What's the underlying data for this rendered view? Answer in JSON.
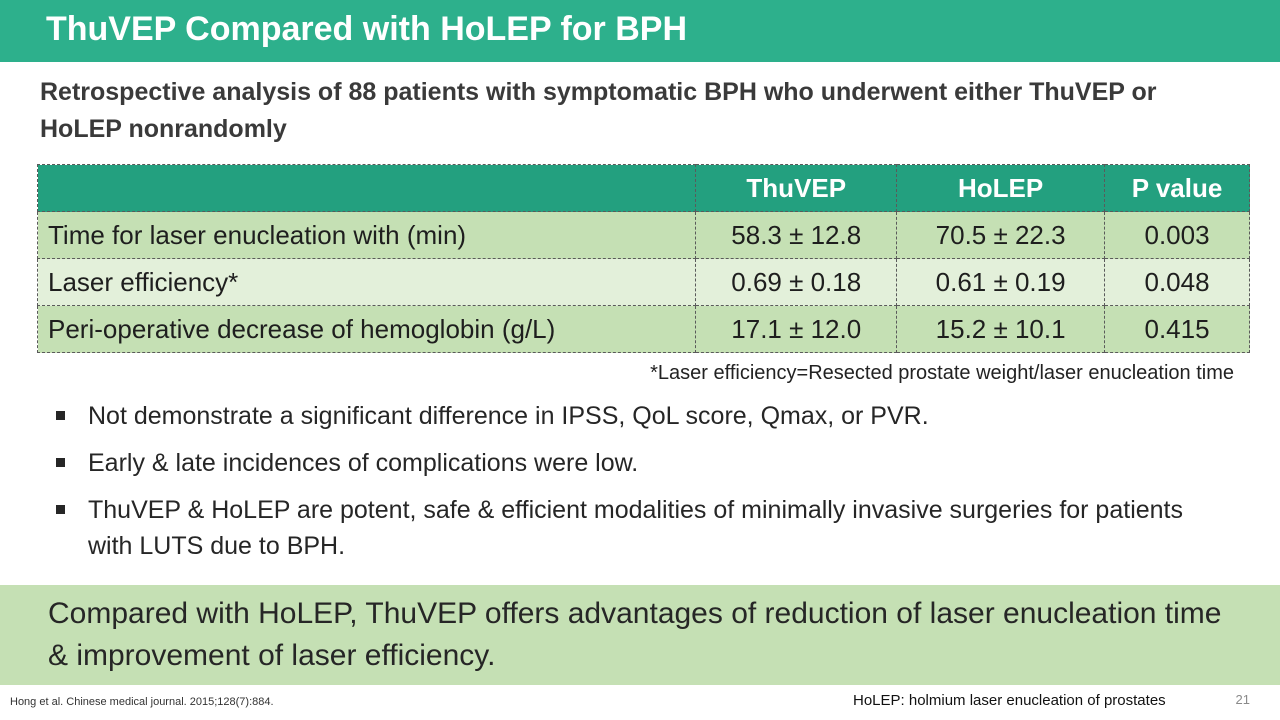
{
  "slide": {
    "title": "ThuVEP Compared with HoLEP for BPH",
    "subtitle": "Retrospective analysis of 88 patients with symptomatic BPH who underwent either ThuVEP or HoLEP nonrandomly",
    "colors": {
      "title_bar": "#2db08c",
      "table_header": "#23a07f",
      "row_dark": "#c5e0b4",
      "row_light": "#e3f0da",
      "conclusion_box": "#c5e0b4"
    }
  },
  "table": {
    "headers": [
      "",
      "ThuVEP",
      "HoLEP",
      "P value"
    ],
    "rows": [
      [
        "Time for laser enucleation with (min)",
        "58.3 ± 12.8",
        "70.5 ± 22.3",
        "0.003"
      ],
      [
        "Laser efficiency*",
        "0.69 ± 0.18",
        "0.61 ± 0.19",
        "0.048"
      ],
      [
        "Peri-operative decrease of hemoglobin (g/L)",
        "17.1 ± 12.0",
        "15.2 ± 10.1",
        "0.415"
      ]
    ]
  },
  "footnote": "*Laser efficiency=Resected prostate weight/laser enucleation time",
  "bullets": [
    "Not demonstrate a significant difference in IPSS, QoL score, Qmax, or PVR.",
    "Early & late incidences of complications were low.",
    "ThuVEP & HoLEP are potent, safe & efficient modalities of minimally invasive surgeries for patients with LUTS due to BPH."
  ],
  "conclusion": "Compared with HoLEP, ThuVEP offers advantages of reduction of laser enucleation time & improvement of laser efficiency.",
  "footer": {
    "reference": "Hong et al. Chinese medical journal. 2015;128(7):884.",
    "abbreviation": "HoLEP: holmium laser enucleation of prostates",
    "page_number": "21"
  }
}
